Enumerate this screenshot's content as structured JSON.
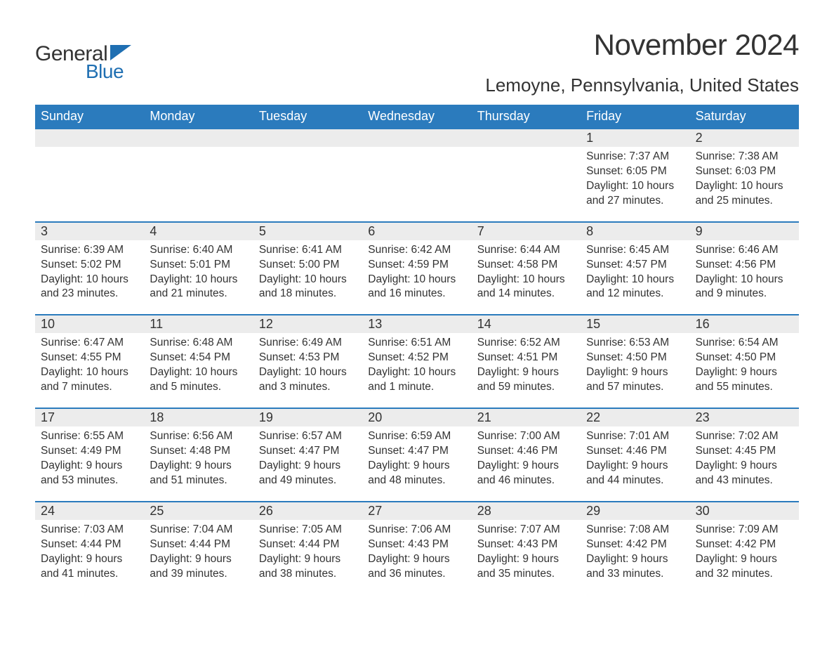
{
  "logo": {
    "word1": "General",
    "word2": "Blue",
    "shape_color": "#1f6fb2"
  },
  "title": "November 2024",
  "location": "Lemoyne, Pennsylvania, United States",
  "colors": {
    "header_bg": "#2b7bbd",
    "header_text": "#ffffff",
    "row_border": "#2b7bbd",
    "daynum_bg": "#ececec",
    "text": "#333333",
    "background": "#ffffff"
  },
  "weekdays": [
    "Sunday",
    "Monday",
    "Tuesday",
    "Wednesday",
    "Thursday",
    "Friday",
    "Saturday"
  ],
  "weeks": [
    [
      null,
      null,
      null,
      null,
      null,
      {
        "n": "1",
        "sunrise": "7:37 AM",
        "sunset": "6:05 PM",
        "daylight": "10 hours and 27 minutes."
      },
      {
        "n": "2",
        "sunrise": "7:38 AM",
        "sunset": "6:03 PM",
        "daylight": "10 hours and 25 minutes."
      }
    ],
    [
      {
        "n": "3",
        "sunrise": "6:39 AM",
        "sunset": "5:02 PM",
        "daylight": "10 hours and 23 minutes."
      },
      {
        "n": "4",
        "sunrise": "6:40 AM",
        "sunset": "5:01 PM",
        "daylight": "10 hours and 21 minutes."
      },
      {
        "n": "5",
        "sunrise": "6:41 AM",
        "sunset": "5:00 PM",
        "daylight": "10 hours and 18 minutes."
      },
      {
        "n": "6",
        "sunrise": "6:42 AM",
        "sunset": "4:59 PM",
        "daylight": "10 hours and 16 minutes."
      },
      {
        "n": "7",
        "sunrise": "6:44 AM",
        "sunset": "4:58 PM",
        "daylight": "10 hours and 14 minutes."
      },
      {
        "n": "8",
        "sunrise": "6:45 AM",
        "sunset": "4:57 PM",
        "daylight": "10 hours and 12 minutes."
      },
      {
        "n": "9",
        "sunrise": "6:46 AM",
        "sunset": "4:56 PM",
        "daylight": "10 hours and 9 minutes."
      }
    ],
    [
      {
        "n": "10",
        "sunrise": "6:47 AM",
        "sunset": "4:55 PM",
        "daylight": "10 hours and 7 minutes."
      },
      {
        "n": "11",
        "sunrise": "6:48 AM",
        "sunset": "4:54 PM",
        "daylight": "10 hours and 5 minutes."
      },
      {
        "n": "12",
        "sunrise": "6:49 AM",
        "sunset": "4:53 PM",
        "daylight": "10 hours and 3 minutes."
      },
      {
        "n": "13",
        "sunrise": "6:51 AM",
        "sunset": "4:52 PM",
        "daylight": "10 hours and 1 minute."
      },
      {
        "n": "14",
        "sunrise": "6:52 AM",
        "sunset": "4:51 PM",
        "daylight": "9 hours and 59 minutes."
      },
      {
        "n": "15",
        "sunrise": "6:53 AM",
        "sunset": "4:50 PM",
        "daylight": "9 hours and 57 minutes."
      },
      {
        "n": "16",
        "sunrise": "6:54 AM",
        "sunset": "4:50 PM",
        "daylight": "9 hours and 55 minutes."
      }
    ],
    [
      {
        "n": "17",
        "sunrise": "6:55 AM",
        "sunset": "4:49 PM",
        "daylight": "9 hours and 53 minutes."
      },
      {
        "n": "18",
        "sunrise": "6:56 AM",
        "sunset": "4:48 PM",
        "daylight": "9 hours and 51 minutes."
      },
      {
        "n": "19",
        "sunrise": "6:57 AM",
        "sunset": "4:47 PM",
        "daylight": "9 hours and 49 minutes."
      },
      {
        "n": "20",
        "sunrise": "6:59 AM",
        "sunset": "4:47 PM",
        "daylight": "9 hours and 48 minutes."
      },
      {
        "n": "21",
        "sunrise": "7:00 AM",
        "sunset": "4:46 PM",
        "daylight": "9 hours and 46 minutes."
      },
      {
        "n": "22",
        "sunrise": "7:01 AM",
        "sunset": "4:46 PM",
        "daylight": "9 hours and 44 minutes."
      },
      {
        "n": "23",
        "sunrise": "7:02 AM",
        "sunset": "4:45 PM",
        "daylight": "9 hours and 43 minutes."
      }
    ],
    [
      {
        "n": "24",
        "sunrise": "7:03 AM",
        "sunset": "4:44 PM",
        "daylight": "9 hours and 41 minutes."
      },
      {
        "n": "25",
        "sunrise": "7:04 AM",
        "sunset": "4:44 PM",
        "daylight": "9 hours and 39 minutes."
      },
      {
        "n": "26",
        "sunrise": "7:05 AM",
        "sunset": "4:44 PM",
        "daylight": "9 hours and 38 minutes."
      },
      {
        "n": "27",
        "sunrise": "7:06 AM",
        "sunset": "4:43 PM",
        "daylight": "9 hours and 36 minutes."
      },
      {
        "n": "28",
        "sunrise": "7:07 AM",
        "sunset": "4:43 PM",
        "daylight": "9 hours and 35 minutes."
      },
      {
        "n": "29",
        "sunrise": "7:08 AM",
        "sunset": "4:42 PM",
        "daylight": "9 hours and 33 minutes."
      },
      {
        "n": "30",
        "sunrise": "7:09 AM",
        "sunset": "4:42 PM",
        "daylight": "9 hours and 32 minutes."
      }
    ]
  ],
  "labels": {
    "sunrise": "Sunrise:",
    "sunset": "Sunset:",
    "daylight": "Daylight:"
  }
}
